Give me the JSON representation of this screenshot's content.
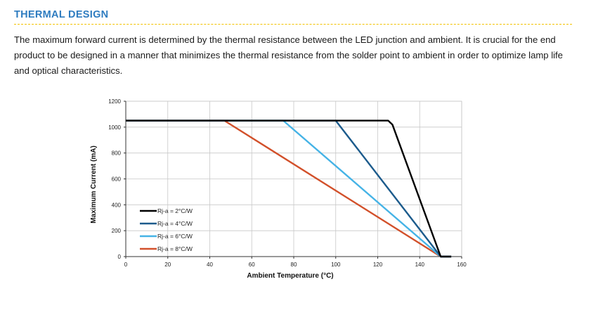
{
  "section": {
    "title": "THERMAL DESIGN",
    "paragraph": "The maximum forward current is determined by the thermal resistance between the LED junction and ambient. It is crucial for the end product to be designed in a manner that minimizes the thermal resistance from the solder point to ambient in order to optimize lamp life and optical characteristics."
  },
  "colors": {
    "heading": "#2e7cc0",
    "rule": "#f2c200",
    "grid": "#c8c8c8"
  },
  "chart_data": {
    "type": "line",
    "title": "",
    "xlabel": "Ambient Temperature (°C)",
    "ylabel": "Maximum Current (mA)",
    "xlim": [
      0,
      160
    ],
    "ylim": [
      0,
      1200
    ],
    "xticks": [
      0,
      20,
      40,
      60,
      80,
      100,
      120,
      140,
      160
    ],
    "yticks": [
      0,
      200,
      400,
      600,
      800,
      1000,
      1200
    ],
    "grid": true,
    "legend_position": "bottom-left",
    "series": [
      {
        "name": "Rj-a = 2°C/W",
        "color": "#000000",
        "x": [
          0,
          125,
          127,
          150,
          155
        ],
        "y": [
          1050,
          1050,
          1020,
          0,
          0
        ]
      },
      {
        "name": "Rj-a = 4°C/W",
        "color": "#1c5b8c",
        "x": [
          0,
          100,
          150,
          155
        ],
        "y": [
          1050,
          1050,
          0,
          0
        ]
      },
      {
        "name": "Rj-a = 6°C/W",
        "color": "#45b3e6",
        "x": [
          0,
          75,
          150,
          155
        ],
        "y": [
          1050,
          1050,
          0,
          0
        ]
      },
      {
        "name": "Rj-a = 8°C/W",
        "color": "#d2502a",
        "x": [
          0,
          47,
          150,
          155
        ],
        "y": [
          1050,
          1050,
          0,
          0
        ]
      }
    ]
  }
}
